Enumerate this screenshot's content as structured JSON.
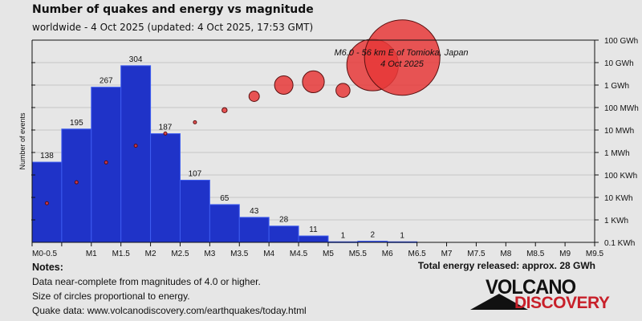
{
  "header": {
    "title": "Number of quakes and energy vs magnitude",
    "subtitle": "worldwide -  4 Oct 2025 (updated: 4 Oct 2025, 17:53 GMT)"
  },
  "chart_data": {
    "type": "bar",
    "title": "Number of quakes and energy vs magnitude",
    "ylabel": "Number of events",
    "x_tick_labels": [
      "M0-0.5",
      "",
      "M1",
      "M1.5",
      "M2",
      "M2.5",
      "M3",
      "M3.5",
      "M4",
      "M4.5",
      "M5",
      "M5.5",
      "M6",
      "M6.5",
      "M7",
      "M7.5",
      "M8",
      "M8.5",
      "M9",
      "M9.5"
    ],
    "bins": [
      "0-0.5",
      "0.5-1",
      "1-1.5",
      "1.5-2",
      "2-2.5",
      "2.5-3",
      "3-3.5",
      "3.5-4",
      "4-4.5",
      "4.5-5",
      "5-5.5",
      "5.5-6",
      "6-6.5"
    ],
    "counts": [
      138,
      195,
      267,
      304,
      187,
      107,
      65,
      43,
      28,
      11,
      1,
      2,
      1
    ],
    "count_ylim": [
      0,
      348
    ],
    "energy_axis": {
      "scale": "log",
      "tick_labels": [
        "0.1 KWh",
        "1 KWh",
        "10 KWh",
        "100 KWh",
        "1 MWh",
        "10 MWh",
        "100 MWh",
        "1 GWh",
        "10 GWh",
        "100 GWh"
      ]
    },
    "energy_kwh": [
      5.5,
      47,
      360,
      2000,
      7000,
      22000,
      76000,
      316000,
      1000000,
      1400000,
      580000,
      7800000,
      16700000
    ],
    "annotation": {
      "line1": "M6.0 - 56 km E of Tomioka, Japan",
      "line2": "4 Oct 2025"
    },
    "grid": true,
    "colors": {
      "bar": "#1f33c8",
      "bar_edge": "#3d5cf0",
      "bubble": "#e63838",
      "background": "#e6e6e6"
    }
  },
  "footer": {
    "notes_heading": "Notes:",
    "notes": [
      "Data near-complete from magnitudes of 4.0 or higher.",
      "Size of circles proportional to energy.",
      "Quake data: www.volcanodiscovery.com/earthquakes/today.html"
    ],
    "total_energy": "Total energy released: approx. 28 GWh"
  },
  "logo": {
    "line1": "VOLCANO",
    "line2": "DISCOVERY"
  }
}
